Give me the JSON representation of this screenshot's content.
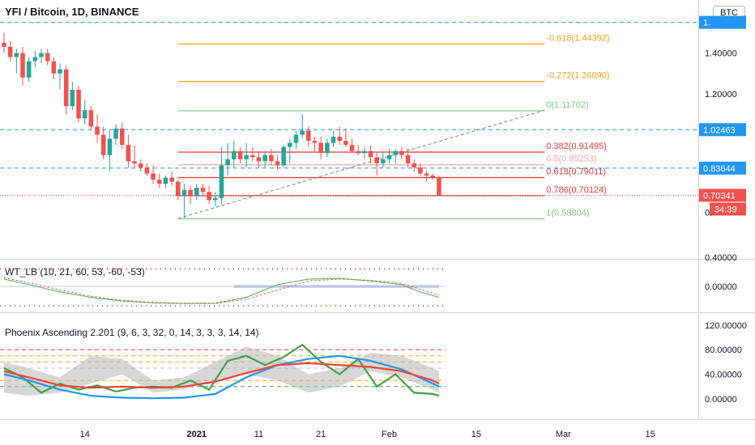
{
  "title": "YFI / Bitcoin, 1D, BINANCE",
  "currency_badge": "BTC",
  "colors": {
    "up": "#26a69a",
    "down": "#ef5350",
    "fib_ext": "#f7a21c",
    "fib_level": "#e53935",
    "fib_green": "#81c784",
    "hline": "#2196f3",
    "axis_text": "#131722"
  },
  "chart_data": [
    {
      "type": "candlestick",
      "name": "price",
      "ylim": [
        0.4,
        1.6
      ],
      "y_ticks": [
        "1.40000",
        "1.20000",
        "0.40000"
      ],
      "x_ticks": [
        "14",
        "2021",
        "11",
        "21",
        "Feb",
        "15",
        "Mar",
        "15"
      ],
      "x_tick_days": [
        14,
        32,
        42,
        52,
        63,
        77,
        91,
        105
      ],
      "last_day": 71,
      "candles": [
        [
          1,
          1.45,
          1.5,
          1.4,
          1.43
        ],
        [
          2,
          1.43,
          1.46,
          1.36,
          1.38
        ],
        [
          3,
          1.38,
          1.42,
          1.3,
          1.4
        ],
        [
          4,
          1.4,
          1.43,
          1.24,
          1.28
        ],
        [
          5,
          1.28,
          1.38,
          1.26,
          1.36
        ],
        [
          6,
          1.36,
          1.41,
          1.33,
          1.38
        ],
        [
          7,
          1.38,
          1.42,
          1.35,
          1.4
        ],
        [
          8,
          1.4,
          1.42,
          1.34,
          1.36
        ],
        [
          9,
          1.36,
          1.38,
          1.27,
          1.3
        ],
        [
          10,
          1.3,
          1.35,
          1.22,
          1.32
        ],
        [
          11,
          1.32,
          1.34,
          1.1,
          1.14
        ],
        [
          12,
          1.14,
          1.26,
          1.12,
          1.22
        ],
        [
          13,
          1.22,
          1.24,
          1.06,
          1.08
        ],
        [
          14,
          1.08,
          1.17,
          1.05,
          1.12
        ],
        [
          15,
          1.12,
          1.14,
          1.02,
          1.04
        ],
        [
          16,
          1.04,
          1.1,
          0.96,
          1.0
        ],
        [
          17,
          1.0,
          1.04,
          0.88,
          0.9
        ],
        [
          18,
          0.9,
          1.02,
          0.82,
          0.98
        ],
        [
          19,
          0.98,
          1.05,
          0.95,
          1.03
        ],
        [
          20,
          1.03,
          1.06,
          0.93,
          0.95
        ],
        [
          21,
          0.95,
          1.0,
          0.84,
          0.87
        ],
        [
          22,
          0.87,
          0.95,
          0.84,
          0.86
        ],
        [
          23,
          0.86,
          0.88,
          0.82,
          0.84
        ],
        [
          24,
          0.84,
          0.86,
          0.8,
          0.81
        ],
        [
          25,
          0.81,
          0.85,
          0.76,
          0.78
        ],
        [
          26,
          0.78,
          0.81,
          0.74,
          0.76
        ],
        [
          27,
          0.76,
          0.8,
          0.74,
          0.79
        ],
        [
          28,
          0.79,
          0.82,
          0.75,
          0.77
        ],
        [
          29,
          0.77,
          0.78,
          0.68,
          0.7
        ],
        [
          30,
          0.7,
          0.76,
          0.59,
          0.73
        ],
        [
          31,
          0.73,
          0.75,
          0.66,
          0.7
        ],
        [
          32,
          0.7,
          0.76,
          0.68,
          0.74
        ],
        [
          33,
          0.74,
          0.76,
          0.7,
          0.72
        ],
        [
          34,
          0.72,
          0.75,
          0.66,
          0.68
        ],
        [
          35,
          0.68,
          0.72,
          0.65,
          0.69
        ],
        [
          36,
          0.69,
          0.94,
          0.66,
          0.85
        ],
        [
          37,
          0.85,
          0.96,
          0.8,
          0.88
        ],
        [
          38,
          0.88,
          0.97,
          0.84,
          0.92
        ],
        [
          39,
          0.92,
          0.94,
          0.86,
          0.88
        ],
        [
          40,
          0.88,
          0.96,
          0.84,
          0.9
        ],
        [
          41,
          0.9,
          0.94,
          0.87,
          0.89
        ],
        [
          42,
          0.89,
          0.92,
          0.84,
          0.87
        ],
        [
          43,
          0.87,
          0.92,
          0.84,
          0.9
        ],
        [
          44,
          0.9,
          0.93,
          0.85,
          0.87
        ],
        [
          45,
          0.87,
          0.9,
          0.83,
          0.85
        ],
        [
          46,
          0.85,
          0.95,
          0.84,
          0.94
        ],
        [
          47,
          0.94,
          0.98,
          0.86,
          0.96
        ],
        [
          48,
          0.96,
          1.02,
          0.93,
          1.0
        ],
        [
          49,
          1.0,
          1.1,
          0.98,
          1.02
        ],
        [
          50,
          1.02,
          1.04,
          0.94,
          0.97
        ],
        [
          51,
          0.97,
          0.99,
          0.92,
          0.96
        ],
        [
          52,
          0.96,
          0.99,
          0.88,
          0.91
        ],
        [
          53,
          0.91,
          0.98,
          0.89,
          0.96
        ],
        [
          54,
          0.96,
          1.02,
          0.94,
          0.99
        ],
        [
          55,
          0.99,
          1.04,
          0.95,
          0.97
        ],
        [
          56,
          0.97,
          1.03,
          0.94,
          0.95
        ],
        [
          57,
          0.95,
          0.98,
          0.91,
          0.92
        ],
        [
          58,
          0.92,
          0.95,
          0.9,
          0.91
        ],
        [
          59,
          0.91,
          0.94,
          0.88,
          0.92
        ],
        [
          60,
          0.92,
          0.95,
          0.86,
          0.89
        ],
        [
          61,
          0.89,
          0.91,
          0.8,
          0.86
        ],
        [
          62,
          0.86,
          0.92,
          0.84,
          0.88
        ],
        [
          63,
          0.88,
          0.93,
          0.86,
          0.9
        ],
        [
          64,
          0.9,
          0.93,
          0.86,
          0.92
        ],
        [
          65,
          0.92,
          0.94,
          0.88,
          0.9
        ],
        [
          66,
          0.9,
          0.93,
          0.84,
          0.86
        ],
        [
          67,
          0.86,
          0.88,
          0.82,
          0.84
        ],
        [
          68,
          0.84,
          0.86,
          0.8,
          0.81
        ],
        [
          69,
          0.81,
          0.82,
          0.77,
          0.8
        ],
        [
          70,
          0.8,
          0.81,
          0.78,
          0.79
        ],
        [
          71,
          0.79,
          0.8,
          0.7,
          0.7
        ]
      ],
      "fib_levels": [
        {
          "label": "-0.618(1.44392)",
          "value": 1.44392,
          "color": "#f7a21c"
        },
        {
          "label": "-0.272(1.26090)",
          "value": 1.2609,
          "color": "#f7a21c"
        },
        {
          "label": "0(1.11702)",
          "value": 1.11702,
          "color": "#81c784"
        },
        {
          "label": "0.382(0.91495)",
          "value": 0.91495,
          "color": "#e53935"
        },
        {
          "label": "0.5(0.85253)",
          "value": 0.85253,
          "color": "#f4a6a6"
        },
        {
          "label": "0.618(0.79011)",
          "value": 0.79011,
          "color": "#e53935"
        },
        {
          "label": "0.786(0.70124)",
          "value": 0.70124,
          "color": "#e53935"
        },
        {
          "label": "1(0.58804)",
          "value": 0.58804,
          "color": "#81c784"
        }
      ],
      "fib_range_days": [
        29,
        88
      ],
      "trendline": {
        "from": [
          29,
          0.59
        ],
        "to": [
          88,
          1.12
        ]
      },
      "horizontal_lines": [
        {
          "value": 1.55,
          "label": "1.",
          "color": "#2196f3"
        },
        {
          "value": 1.02463,
          "label": "1.02463",
          "color": "#2196f3"
        },
        {
          "value": 0.83644,
          "label": "0.83644",
          "color": "#2196f3"
        }
      ],
      "last_price": {
        "value": 0.70341,
        "label": "0.70341",
        "countdown": "34:39",
        "color": "#ef5350"
      },
      "partial_label": {
        "value": 0.62,
        "label": "0."
      }
    },
    {
      "type": "line",
      "name": "WT_LB (10, 21, 60, 53, -60, -53)",
      "ylim": [
        -60,
        60
      ],
      "y_ticks": [
        "0.00000"
      ],
      "series": [
        {
          "name": "wt1",
          "color": "#4caf50",
          "x": [
            1,
            5,
            10,
            15,
            20,
            25,
            30,
            35,
            40,
            45,
            50,
            55,
            60,
            65,
            68,
            71
          ],
          "y": [
            20,
            5,
            -15,
            -30,
            -40,
            -45,
            -47,
            -46,
            -30,
            5,
            20,
            22,
            15,
            5,
            -15,
            -30
          ]
        },
        {
          "name": "wt2",
          "color": "#e53935",
          "x": [
            1,
            5,
            10,
            15,
            20,
            25,
            30,
            35,
            40,
            45,
            50,
            55,
            60,
            65,
            68,
            71
          ],
          "y": [
            24,
            10,
            -10,
            -27,
            -38,
            -44,
            -47,
            -47,
            -35,
            -10,
            15,
            20,
            17,
            8,
            -8,
            -24
          ]
        }
      ]
    },
    {
      "type": "line",
      "name": "Phoenix Ascending 2.201 (9, 6, 3, 32, 0, 14, 3, 3, 3, 14, 14)",
      "ylim": [
        -10,
        120
      ],
      "y_ticks": [
        "120.00000",
        "80.00000",
        "40.00000",
        "0.00000"
      ],
      "series": [
        {
          "name": "green",
          "color": "#43a047",
          "x": [
            1,
            4,
            7,
            10,
            13,
            16,
            19,
            22,
            25,
            28,
            31,
            34,
            37,
            40,
            43,
            46,
            49,
            52,
            55,
            58,
            61,
            64,
            67,
            70,
            71
          ],
          "y": [
            50,
            35,
            10,
            25,
            15,
            22,
            12,
            18,
            20,
            18,
            30,
            15,
            62,
            70,
            55,
            68,
            88,
            60,
            40,
            65,
            20,
            40,
            10,
            8,
            5
          ]
        },
        {
          "name": "blue",
          "color": "#2196f3",
          "x": [
            1,
            5,
            10,
            15,
            20,
            25,
            30,
            35,
            40,
            45,
            50,
            55,
            60,
            65,
            70,
            71
          ],
          "y": [
            40,
            30,
            15,
            5,
            2,
            1,
            2,
            8,
            35,
            55,
            65,
            70,
            62,
            48,
            25,
            20
          ]
        },
        {
          "name": "red",
          "color": "#f44336",
          "x": [
            1,
            5,
            10,
            15,
            20,
            25,
            30,
            35,
            40,
            45,
            50,
            55,
            60,
            65,
            70,
            71
          ],
          "y": [
            45,
            35,
            22,
            18,
            20,
            18,
            20,
            28,
            42,
            55,
            58,
            55,
            52,
            45,
            30,
            25
          ]
        }
      ],
      "dashed_levels": [
        80,
        70,
        60,
        50,
        30,
        20
      ]
    }
  ]
}
